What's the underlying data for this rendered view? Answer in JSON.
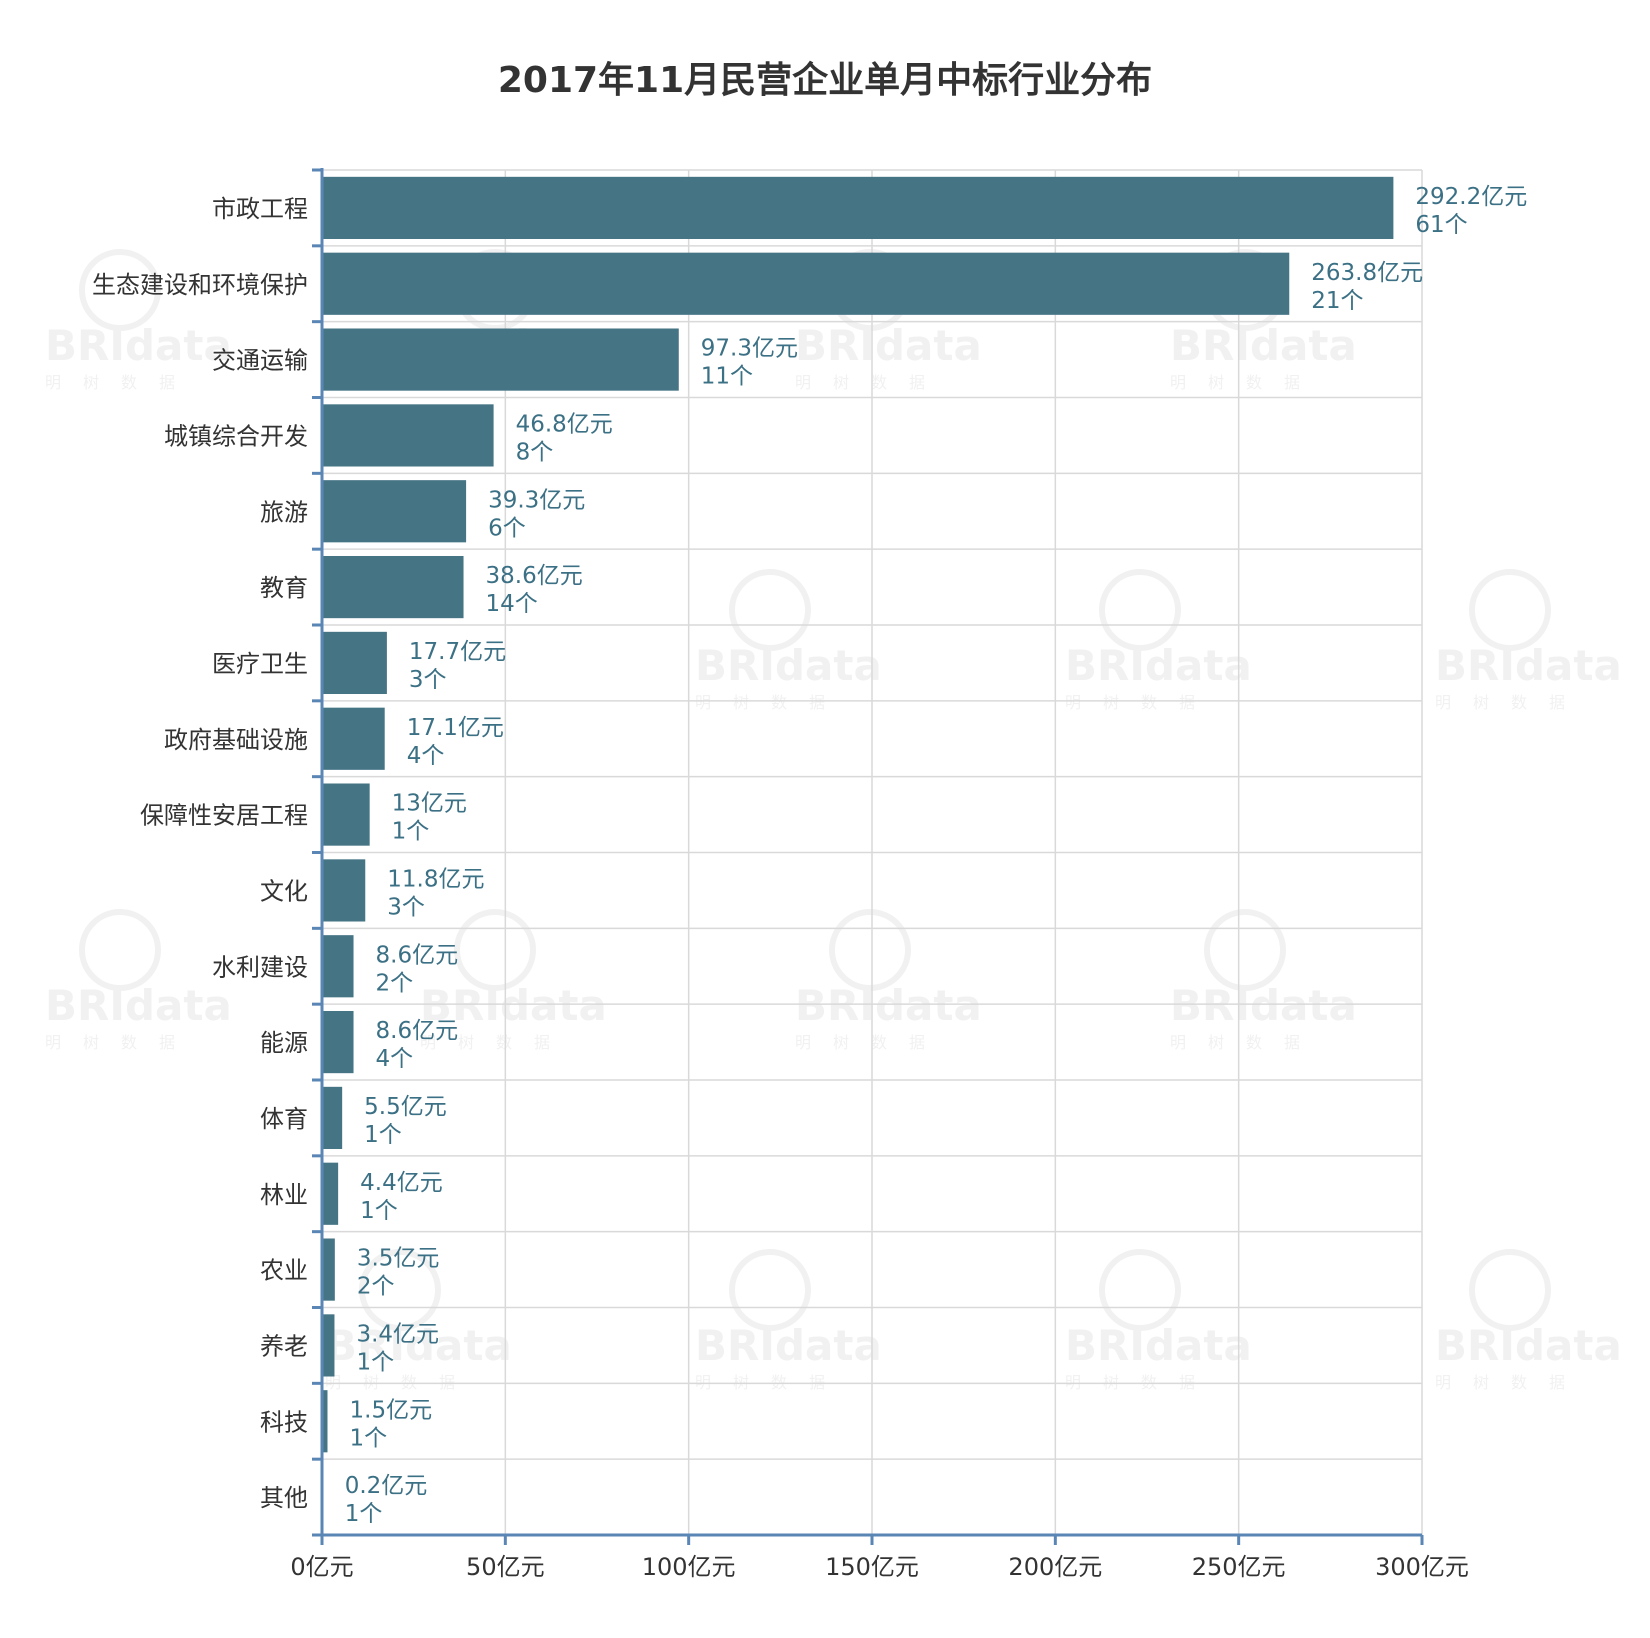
{
  "chart_data": {
    "type": "bar",
    "orientation": "horizontal",
    "title": "2017年11月民营企业单月中标行业分布",
    "xlim": [
      0,
      300
    ],
    "x_ticks": [
      0,
      50,
      100,
      150,
      200,
      250,
      300
    ],
    "x_tick_labels": [
      "0亿元",
      "50亿元",
      "100亿元",
      "150亿元",
      "200亿元",
      "250亿元",
      "300亿元"
    ],
    "grid": true,
    "bar_color": "#457585",
    "categories": [
      "市政工程",
      "生态建设和环境保护",
      "交通运输",
      "城镇综合开发",
      "旅游",
      "教育",
      "医疗卫生",
      "政府基础设施",
      "保障性安居工程",
      "文化",
      "水利建设",
      "能源",
      "体育",
      "林业",
      "农业",
      "养老",
      "科技",
      "其他"
    ],
    "values": [
      292.2,
      263.8,
      97.3,
      46.8,
      39.3,
      38.6,
      17.7,
      17.1,
      13,
      11.8,
      8.6,
      8.6,
      5.5,
      4.4,
      3.5,
      3.4,
      1.5,
      0.2
    ],
    "value_labels": [
      "292.2亿元",
      "263.8亿元",
      "97.3亿元",
      "46.8亿元",
      "39.3亿元",
      "38.6亿元",
      "17.7亿元",
      "17.1亿元",
      "13亿元",
      "11.8亿元",
      "8.6亿元",
      "8.6亿元",
      "5.5亿元",
      "4.4亿元",
      "3.5亿元",
      "3.4亿元",
      "1.5亿元",
      "0.2亿元"
    ],
    "counts": [
      61,
      21,
      11,
      8,
      6,
      14,
      3,
      4,
      1,
      3,
      2,
      4,
      1,
      1,
      2,
      1,
      1,
      1
    ],
    "count_labels": [
      "61个",
      "21个",
      "11个",
      "8个",
      "6个",
      "14个",
      "3个",
      "4个",
      "1个",
      "3个",
      "2个",
      "4个",
      "1个",
      "1个",
      "2个",
      "1个",
      "1个",
      "1个"
    ]
  },
  "watermark": {
    "text": "BRIdata",
    "sub": "明树数据"
  }
}
